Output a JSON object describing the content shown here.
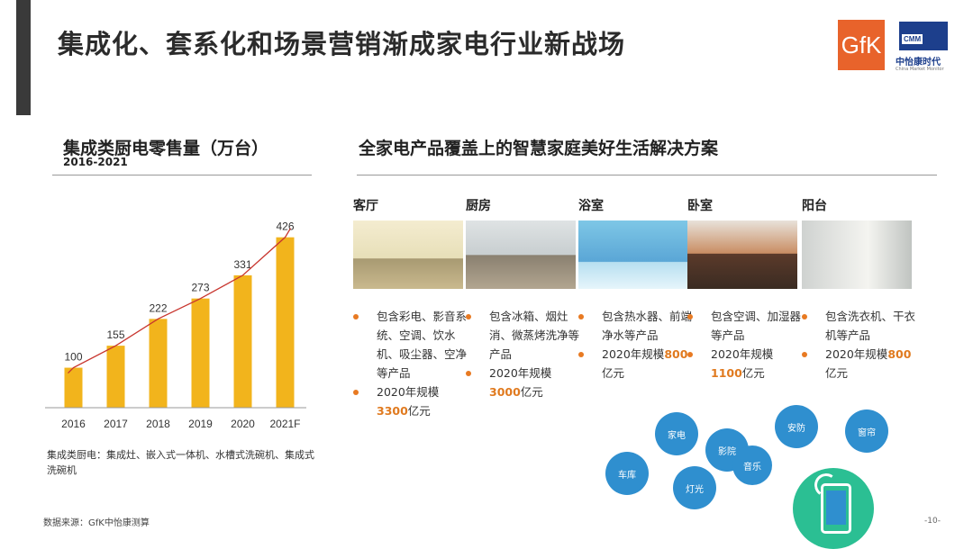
{
  "header": {
    "title": "集成化、套系化和场景营销渐成家电行业新战场",
    "gfk_logo": "GfK",
    "cmm_tag": "CMM",
    "cmm_name": "中怡康时代",
    "cmm_sub": "China Market Monitor"
  },
  "left": {
    "title": "集成类厨电零售量（万台）",
    "subtitle": "2016-2021",
    "note": "集成类厨电：集成灶、嵌入式一体机、水槽式洗碗机、集成式洗碗机"
  },
  "chart_data": {
    "type": "bar",
    "title": "集成类厨电零售量（万台）",
    "subtitle": "2016-2021",
    "categories": [
      "2016",
      "2017",
      "2018",
      "2019",
      "2020",
      "2021F"
    ],
    "values": [
      100,
      155,
      222,
      273,
      331,
      426
    ],
    "ylim": [
      0,
      450
    ],
    "trendline": "exponential",
    "colors": {
      "bar": "#f2b41c",
      "trend": "#c8352e"
    }
  },
  "right": {
    "title": "全家电产品覆盖上的智慧家庭美好生活解决方案",
    "rooms": [
      {
        "name": "客厅",
        "bullets": [
          {
            "pre": "包含彩电、影音系统、空调、饮水机、吸尘器、空净等产品",
            "hl": "",
            "post": ""
          },
          {
            "pre": "2020年规模",
            "hl": "3300",
            "post": "亿元"
          }
        ]
      },
      {
        "name": "厨房",
        "bullets": [
          {
            "pre": "包含冰箱、烟灶消、微蒸烤洗净等产品",
            "hl": "",
            "post": ""
          },
          {
            "pre": "2020年规模",
            "hl": "3000",
            "post": "亿元"
          }
        ]
      },
      {
        "name": "浴室",
        "bullets": [
          {
            "pre": "包含热水器、前端净水等产品",
            "hl": "",
            "post": ""
          },
          {
            "pre": "2020年规模",
            "hl": "800",
            "post": "亿元"
          }
        ]
      },
      {
        "name": "卧室",
        "bullets": [
          {
            "pre": "包含空调、加湿器等产品",
            "hl": "",
            "post": ""
          },
          {
            "pre": "2020年规模",
            "hl": "1100",
            "post": "亿元"
          }
        ]
      },
      {
        "name": "阳台",
        "bullets": [
          {
            "pre": "包含洗衣机、干衣机等产品",
            "hl": "",
            "post": ""
          },
          {
            "pre": "2020年规模",
            "hl": "800",
            "post": "亿元"
          }
        ]
      }
    ],
    "bubbles": [
      "家电",
      "影院",
      "音乐",
      "车库",
      "灯光",
      "安防",
      "窗帘"
    ]
  },
  "footer": {
    "source": "数据来源：GfK中怡康测算",
    "page": "-10-"
  }
}
